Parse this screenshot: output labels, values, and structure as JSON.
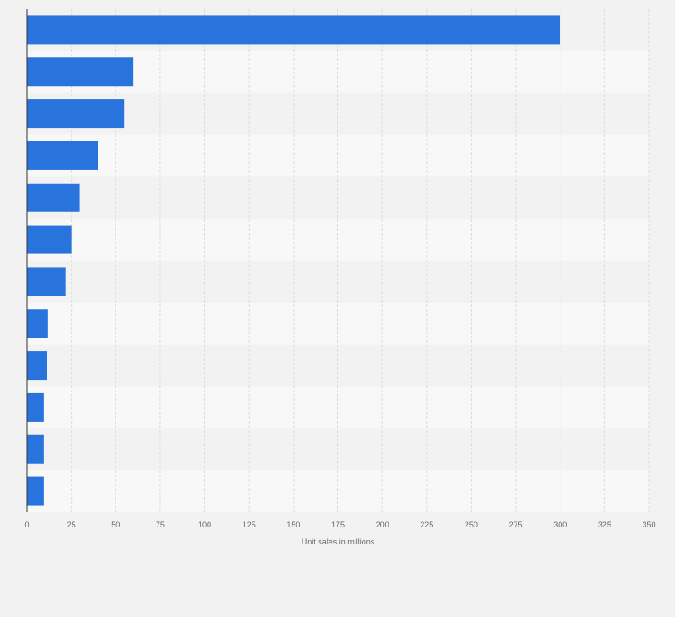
{
  "chart_data": {
    "type": "bar",
    "orientation": "horizontal",
    "categories": [
      "",
      "",
      "",
      "",
      "",
      "",
      "",
      "",
      "",
      "",
      "",
      ""
    ],
    "values": [
      300,
      60,
      55,
      40,
      29.5,
      25,
      22,
      12,
      11.5,
      9.5,
      9.5,
      9.5
    ],
    "title": "",
    "xlabel": "Unit sales in millions",
    "ylabel": "",
    "xlim": [
      0,
      350
    ],
    "xticks": [
      0,
      25,
      50,
      75,
      100,
      125,
      150,
      175,
      200,
      225,
      250,
      275,
      300,
      325,
      350
    ],
    "grid": true,
    "colors": {
      "bar": "#2874dc",
      "background": "#f2f2f2",
      "band_light": "#f8f8f8",
      "band_dark": "#f2f2f2",
      "grid": "#dcdcdc",
      "axis": "#333333",
      "text": "#666666"
    }
  }
}
